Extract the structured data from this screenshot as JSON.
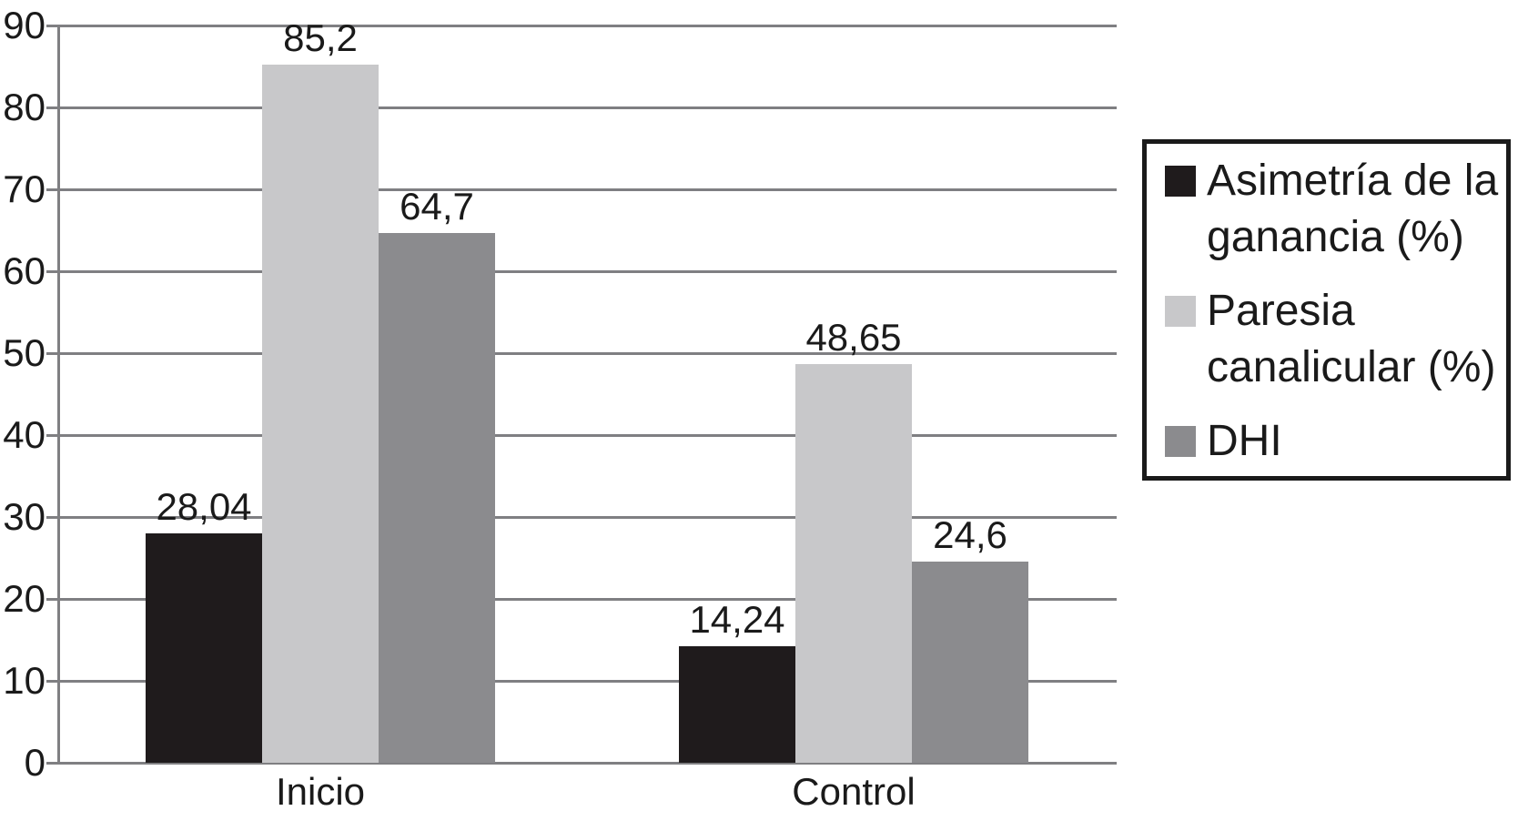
{
  "chart_data": {
    "type": "bar",
    "title": "",
    "xlabel": "",
    "ylabel": "",
    "categories": [
      "Inicio",
      "Control"
    ],
    "series": [
      {
        "name": "Asimetría de la ganancia (%)",
        "color": "#1f1b1c",
        "values": [
          28.04,
          14.24
        ],
        "value_labels": [
          "28,04",
          "14,24"
        ]
      },
      {
        "name": "Paresia canalicular (%)",
        "color": "#c8c8ca",
        "values": [
          85.2,
          48.65
        ],
        "value_labels": [
          "85,2",
          "48,65"
        ]
      },
      {
        "name": "DHI",
        "color": "#8b8b8e",
        "values": [
          64.7,
          24.6
        ],
        "value_labels": [
          "64,7",
          "24,6"
        ]
      }
    ],
    "ylim": [
      0,
      90
    ],
    "yticks": [
      0,
      10,
      20,
      30,
      40,
      50,
      60,
      70,
      80,
      90
    ],
    "ytick_labels": [
      "0",
      "10",
      "20",
      "30",
      "40",
      "50",
      "60",
      "70",
      "80",
      "90"
    ],
    "grid": true,
    "legend_position": "right",
    "axis_color": "#7f7f82",
    "text_color": "#1a1a1a",
    "background_color": "#ffffff"
  }
}
